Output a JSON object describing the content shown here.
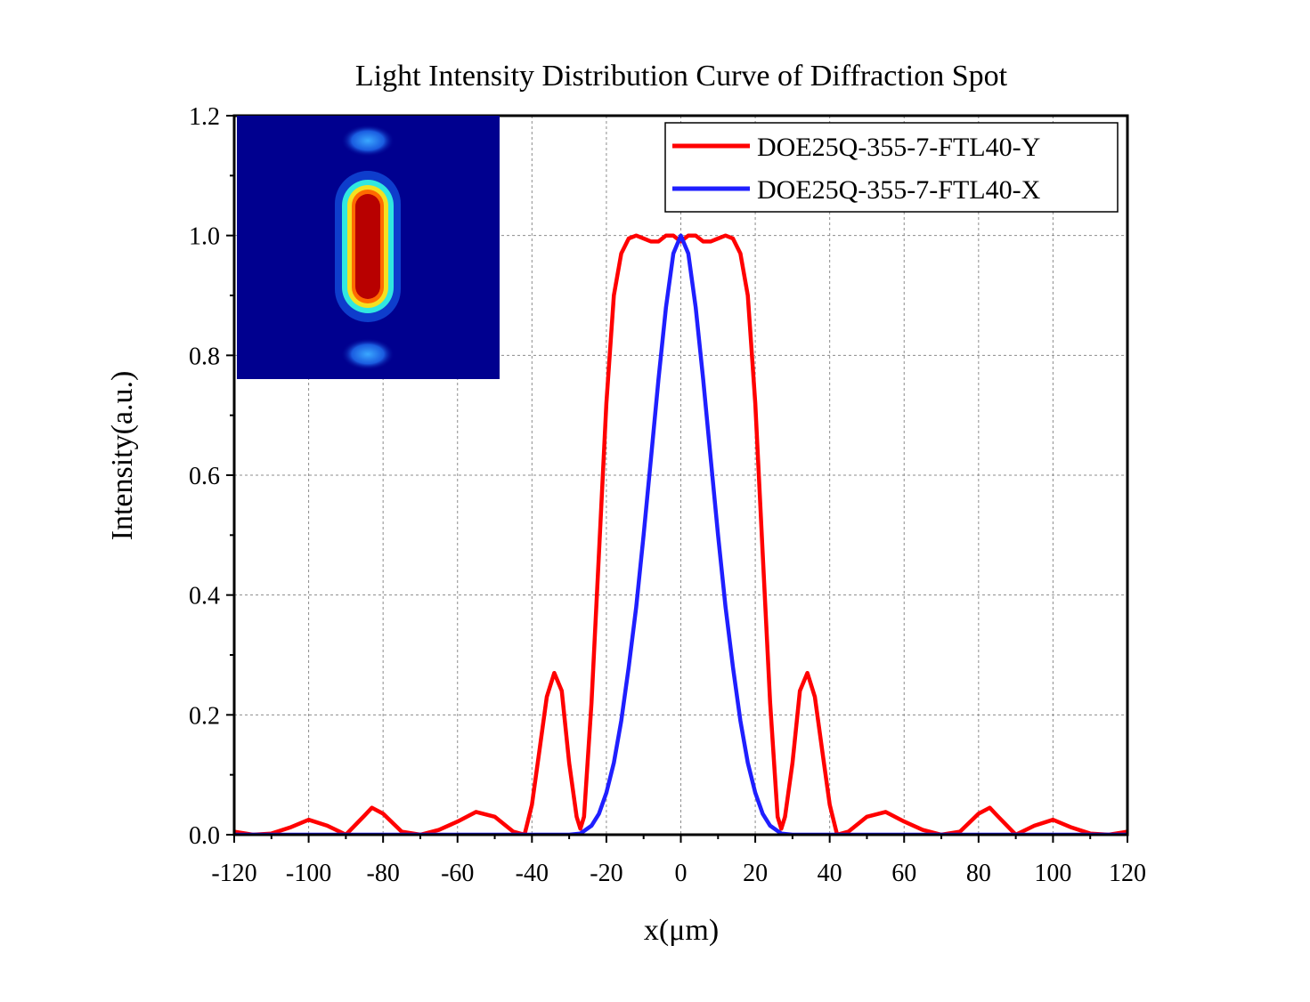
{
  "colors": {
    "y_series": "#ff0000",
    "x_series": "#1f1fff",
    "grid": "#8c8c8c",
    "axis": "#000000"
  },
  "chart_data": {
    "type": "line",
    "title": "Light Intensity Distribution Curve of Diffraction Spot",
    "xlabel": "x(μm)",
    "ylabel": "Intensity(a.u.)",
    "xlim": [
      -120,
      120
    ],
    "ylim": [
      0.0,
      1.2
    ],
    "xticks": [
      "-120",
      "-100",
      "-80",
      "-60",
      "-40",
      "-20",
      "0",
      "20",
      "40",
      "60",
      "80",
      "100",
      "120"
    ],
    "yticks": [
      "0.0",
      "0.2",
      "0.4",
      "0.6",
      "0.8",
      "1.0",
      "1.2"
    ],
    "grid": true,
    "legend_position": "top-right",
    "inset": "heatmap-spot",
    "series": [
      {
        "name": "DOE25Q-355-7-FTL40-Y",
        "color": "#ff0000",
        "x": [
          -120,
          -115,
          -110,
          -105,
          -100,
          -95,
          -90,
          -85,
          -83,
          -80,
          -75,
          -70,
          -65,
          -60,
          -55,
          -50,
          -45,
          -42,
          -40,
          -38,
          -36,
          -34,
          -32,
          -30,
          -28,
          -27,
          -26,
          -24,
          -22,
          -20,
          -18,
          -16,
          -14,
          -12,
          -10,
          -8,
          -6,
          -4,
          -2,
          0,
          2,
          4,
          6,
          8,
          10,
          12,
          14,
          16,
          18,
          20,
          22,
          24,
          26,
          27,
          28,
          30,
          32,
          34,
          36,
          38,
          40,
          42,
          45,
          50,
          55,
          60,
          65,
          70,
          75,
          80,
          83,
          85,
          90,
          95,
          100,
          105,
          110,
          115,
          120
        ],
        "y": [
          0.005,
          0.0,
          0.002,
          0.012,
          0.025,
          0.015,
          0.0,
          0.032,
          0.045,
          0.035,
          0.005,
          0.0,
          0.008,
          0.022,
          0.038,
          0.03,
          0.005,
          0.0,
          0.05,
          0.14,
          0.23,
          0.27,
          0.24,
          0.12,
          0.03,
          0.01,
          0.03,
          0.22,
          0.47,
          0.72,
          0.9,
          0.97,
          0.995,
          1.0,
          0.995,
          0.99,
          0.99,
          1.0,
          1.0,
          0.99,
          1.0,
          1.0,
          0.99,
          0.99,
          0.995,
          1.0,
          0.995,
          0.97,
          0.9,
          0.72,
          0.47,
          0.22,
          0.03,
          0.01,
          0.03,
          0.12,
          0.24,
          0.27,
          0.23,
          0.14,
          0.05,
          0.0,
          0.005,
          0.03,
          0.038,
          0.022,
          0.008,
          0.0,
          0.005,
          0.035,
          0.045,
          0.032,
          0.0,
          0.015,
          0.025,
          0.012,
          0.002,
          0.0,
          0.005
        ]
      },
      {
        "name": "DOE25Q-355-7-FTL40-X",
        "color": "#1f1fff",
        "x": [
          -120,
          -100,
          -80,
          -60,
          -40,
          -30,
          -27,
          -24,
          -22,
          -20,
          -18,
          -16,
          -14,
          -12,
          -10,
          -8,
          -6,
          -4,
          -2,
          0,
          2,
          4,
          6,
          8,
          10,
          12,
          14,
          16,
          18,
          20,
          22,
          24,
          27,
          30,
          40,
          60,
          80,
          100,
          120
        ],
        "y": [
          0.0,
          0.0,
          0.0,
          0.0,
          0.0,
          0.0,
          0.002,
          0.015,
          0.035,
          0.07,
          0.12,
          0.19,
          0.28,
          0.38,
          0.5,
          0.63,
          0.76,
          0.88,
          0.97,
          1.0,
          0.97,
          0.88,
          0.76,
          0.63,
          0.5,
          0.38,
          0.28,
          0.19,
          0.12,
          0.07,
          0.035,
          0.015,
          0.002,
          0.0,
          0.0,
          0.0,
          0.0,
          0.0,
          0.0
        ]
      }
    ]
  }
}
